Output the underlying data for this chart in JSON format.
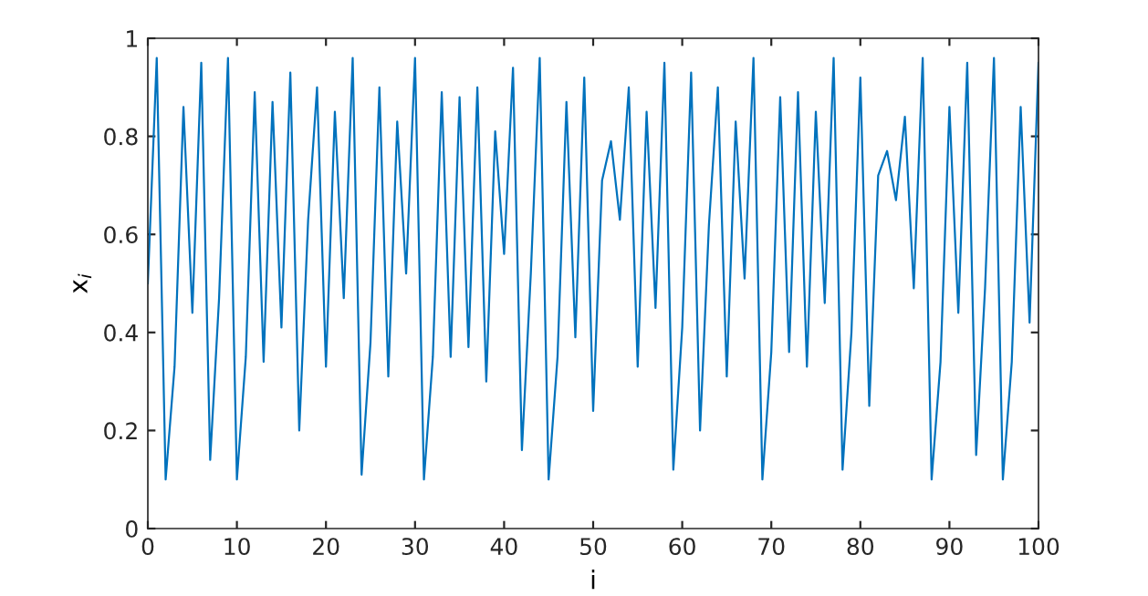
{
  "chart_data": {
    "type": "line",
    "xlabel": "i",
    "ylabel": "x$_{i}$",
    "xlim": [
      0,
      100
    ],
    "xticks": [
      0,
      10,
      20,
      30,
      40,
      50,
      60,
      70,
      80,
      90,
      100
    ],
    "ylim": [
      0,
      1
    ],
    "yticks": [
      0,
      0.2,
      0.4,
      0.6,
      0.8,
      1
    ],
    "grid": false,
    "legend": false,
    "x": [
      0,
      1,
      2,
      3,
      4,
      5,
      6,
      7,
      8,
      9,
      10,
      11,
      12,
      13,
      14,
      15,
      16,
      17,
      18,
      19,
      20,
      21,
      22,
      23,
      24,
      25,
      26,
      27,
      28,
      29,
      30,
      31,
      32,
      33,
      34,
      35,
      36,
      37,
      38,
      39,
      40,
      41,
      42,
      43,
      44,
      45,
      46,
      47,
      48,
      49,
      50,
      51,
      52,
      53,
      54,
      55,
      56,
      57,
      58,
      59,
      60,
      61,
      62,
      63,
      64,
      65,
      66,
      67,
      68,
      69,
      70,
      71,
      72,
      73,
      74,
      75,
      76,
      77,
      78,
      79,
      80,
      81,
      82,
      83,
      84,
      85,
      86,
      87,
      88,
      89,
      90,
      91,
      92,
      93,
      94,
      95,
      96,
      97,
      98,
      99,
      100
    ],
    "series": [
      {
        "color": "#0072bd",
        "values": [
          0.5,
          0.96,
          0.1,
          0.33,
          0.86,
          0.44,
          0.95,
          0.14,
          0.47,
          0.96,
          0.1,
          0.35,
          0.89,
          0.34,
          0.87,
          0.41,
          0.93,
          0.2,
          0.63,
          0.9,
          0.33,
          0.85,
          0.47,
          0.96,
          0.11,
          0.38,
          0.9,
          0.31,
          0.83,
          0.52,
          0.96,
          0.1,
          0.35,
          0.89,
          0.35,
          0.88,
          0.37,
          0.9,
          0.3,
          0.81,
          0.56,
          0.94,
          0.16,
          0.52,
          0.96,
          0.1,
          0.35,
          0.87,
          0.39,
          0.92,
          0.24,
          0.71,
          0.79,
          0.63,
          0.9,
          0.33,
          0.85,
          0.45,
          0.95,
          0.12,
          0.41,
          0.93,
          0.2,
          0.62,
          0.9,
          0.31,
          0.83,
          0.51,
          0.96,
          0.1,
          0.36,
          0.88,
          0.36,
          0.89,
          0.33,
          0.85,
          0.46,
          0.96,
          0.12,
          0.4,
          0.92,
          0.25,
          0.72,
          0.77,
          0.67,
          0.84,
          0.49,
          0.96,
          0.1,
          0.34,
          0.86,
          0.44,
          0.95,
          0.15,
          0.49,
          0.96,
          0.1,
          0.34,
          0.86,
          0.42,
          0.95
        ]
      }
    ]
  }
}
